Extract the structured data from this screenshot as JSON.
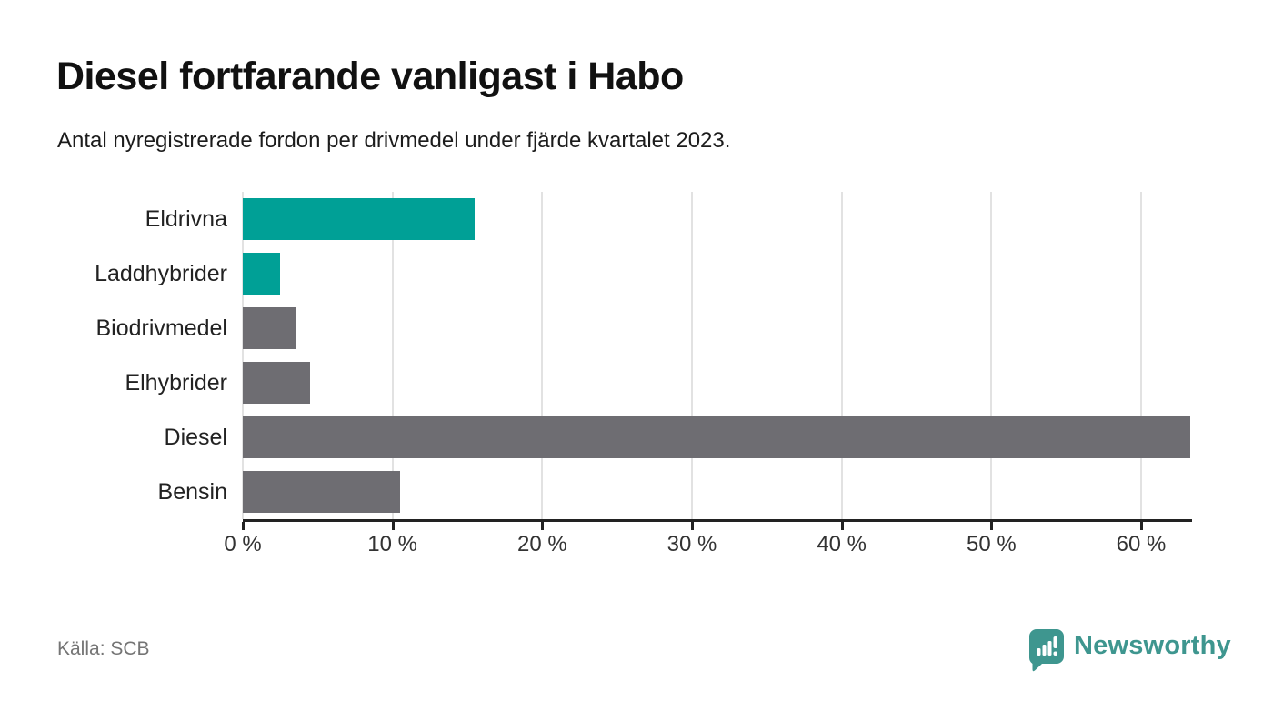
{
  "chart": {
    "title": "Diesel fortfarande vanligast i Habo",
    "subtitle": "Antal nyregistrerade fordon per drivmedel under fjärde kvartalet 2023.",
    "source": "Källa: SCB",
    "brand": "Newsworthy"
  },
  "chart_data": {
    "type": "bar",
    "orientation": "horizontal",
    "title": "Diesel fortfarande vanligast i Habo",
    "subtitle": "Antal nyregistrerade fordon per drivmedel under fjärde kvartalet 2023.",
    "categories": [
      "Eldrivna",
      "Laddhybrider",
      "Biodrivmedel",
      "Elhybrider",
      "Diesel",
      "Bensin"
    ],
    "values": [
      15.5,
      2.5,
      3.5,
      4.5,
      63.3,
      10.5
    ],
    "unit": "%",
    "bar_colors": [
      "#00a096",
      "#00a096",
      "#6e6d72",
      "#6e6d72",
      "#6e6d72",
      "#6e6d72"
    ],
    "xlabel": "",
    "ylabel": "",
    "xlim": [
      0,
      63.4
    ],
    "x_tick_values": [
      0,
      10,
      20,
      30,
      40,
      50,
      60
    ],
    "x_tick_labels": [
      "0 %",
      "10 %",
      "20 %",
      "30 %",
      "40 %",
      "50 %",
      "60 %"
    ],
    "grid": "vertical",
    "legend": "none"
  },
  "colors": {
    "accent_teal": "#00a096",
    "neutral_gray": "#6e6d72",
    "axis": "#222222",
    "gridline": "#e2e2e2",
    "brand_teal": "#3e968f"
  }
}
